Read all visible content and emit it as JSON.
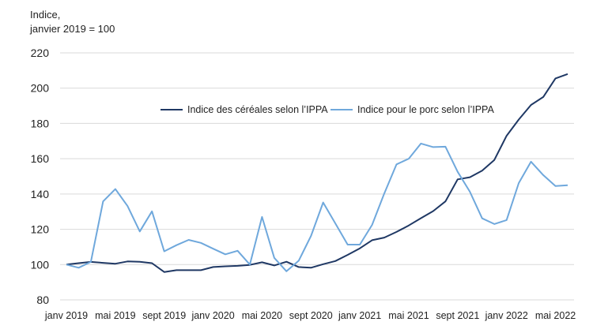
{
  "chart_data": {
    "type": "line",
    "ylabel_line1": "Indice,",
    "ylabel_line2": "janvier 2019 = 100",
    "ylim": [
      80,
      220
    ],
    "yticks": [
      80,
      100,
      120,
      140,
      160,
      180,
      200,
      220
    ],
    "grid": "horizontal",
    "legend": "top-center",
    "x": [
      "janv 2019",
      "févr 2019",
      "mars 2019",
      "avr 2019",
      "mai 2019",
      "juin 2019",
      "juil 2019",
      "août 2019",
      "sept 2019",
      "oct 2019",
      "nov 2019",
      "déc 2019",
      "janv 2020",
      "févr 2020",
      "mars 2020",
      "avr 2020",
      "mai 2020",
      "juin 2020",
      "juil 2020",
      "août 2020",
      "sept 2020",
      "oct 2020",
      "nov 2020",
      "déc 2020",
      "janv 2021",
      "févr 2021",
      "mars 2021",
      "avr 2021",
      "mai 2021",
      "juin 2021",
      "juil 2021",
      "août 2021",
      "sept 2021",
      "oct 2021",
      "nov 2021",
      "déc 2021",
      "janv 2022",
      "févr 2022",
      "mars 2022",
      "avr 2022",
      "mai 2022",
      "juin 2022"
    ],
    "xtick_labels": [
      "janv 2019",
      "mai 2019",
      "sept 2019",
      "janv 2020",
      "mai 2020",
      "sept 2020",
      "janv 2021",
      "mai 2021",
      "sept 2021",
      "janv 2022",
      "mai 2022"
    ],
    "series": [
      {
        "name": "Indice des céréales selon l’IPPA",
        "color": "#1f3864",
        "values": [
          100,
          100.8,
          101.5,
          101,
          100.5,
          101.8,
          101.6,
          100.8,
          95.8,
          96.8,
          96.8,
          96.8,
          98.6,
          99,
          99.3,
          99.8,
          101.3,
          99.5,
          101.6,
          98.6,
          98.2,
          100.2,
          102,
          105.5,
          109.2,
          113.8,
          115.3,
          118.5,
          122.2,
          126.3,
          130.3,
          135.8,
          148.3,
          149.5,
          153.2,
          159.3,
          173,
          182.2,
          190.5,
          195,
          205.5,
          208
        ]
      },
      {
        "name": "Indice pour le porc selon l’IPPA",
        "color": "#6fa8dc",
        "values": [
          100,
          98.2,
          101.5,
          135.8,
          142.8,
          133.2,
          118.8,
          130.2,
          107.5,
          111,
          114,
          112.3,
          109,
          105.8,
          107.8,
          100,
          127,
          103.8,
          96.2,
          102.2,
          116.2,
          135.2,
          123.3,
          111.3,
          111.3,
          122.5,
          140.3,
          156.8,
          160,
          168.6,
          166.6,
          166.8,
          152.6,
          141.3,
          126.2,
          123,
          125.2,
          146.2,
          158.3,
          150.7,
          144.5,
          145
        ]
      }
    ]
  }
}
